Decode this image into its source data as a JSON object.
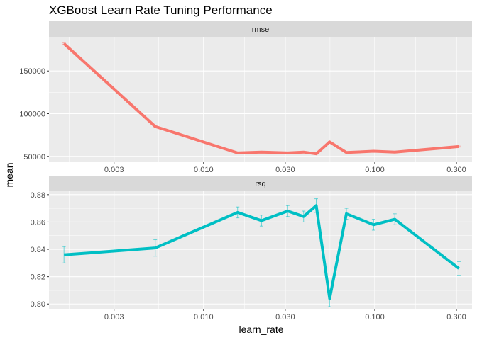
{
  "chart_data": {
    "type": "line",
    "title": "XGBoost Learn Rate Tuning Performance",
    "xlabel": "learn_rate",
    "ylabel": "mean",
    "x_scale": "log10",
    "xlim": [
      0.00125,
      0.37
    ],
    "x_ticks": [
      {
        "value": 0.003,
        "label": "0.003"
      },
      {
        "value": 0.01,
        "label": "0.010"
      },
      {
        "value": 0.03,
        "label": "0.030"
      },
      {
        "value": 0.1,
        "label": "0.100"
      },
      {
        "value": 0.3,
        "label": "0.300"
      }
    ],
    "grid": true,
    "legend": "none",
    "panels": [
      {
        "facet": "rmse",
        "color": "#F8766D",
        "ylim": [
          44000,
          190000
        ],
        "y_ticks": [
          {
            "value": 50000,
            "label": "50000"
          },
          {
            "value": 100000,
            "label": "100000"
          },
          {
            "value": 150000,
            "label": "150000"
          }
        ],
        "x": [
          0.00153,
          0.00522,
          0.0158,
          0.0218,
          0.031,
          0.0384,
          0.0455,
          0.0545,
          0.0683,
          0.0985,
          0.131,
          0.31
        ],
        "mean": [
          182000,
          85000,
          54000,
          55000,
          54000,
          55000,
          53000,
          67000,
          54500,
          56000,
          55000,
          61500
        ],
        "err": [
          800,
          500,
          500,
          500,
          500,
          500,
          500,
          600,
          500,
          500,
          500,
          600
        ]
      },
      {
        "facet": "rsq",
        "color": "#00BFC4",
        "ylim": [
          0.7965,
          0.8825
        ],
        "y_ticks": [
          {
            "value": 0.8,
            "label": "0.80"
          },
          {
            "value": 0.82,
            "label": "0.82"
          },
          {
            "value": 0.84,
            "label": "0.84"
          },
          {
            "value": 0.86,
            "label": "0.86"
          },
          {
            "value": 0.88,
            "label": "0.88"
          }
        ],
        "x": [
          0.00153,
          0.00522,
          0.0158,
          0.0218,
          0.031,
          0.0384,
          0.0455,
          0.0545,
          0.0683,
          0.0985,
          0.131,
          0.31
        ],
        "mean": [
          0.836,
          0.841,
          0.867,
          0.861,
          0.868,
          0.864,
          0.872,
          0.804,
          0.866,
          0.858,
          0.862,
          0.826
        ],
        "err": [
          0.006,
          0.006,
          0.004,
          0.004,
          0.004,
          0.004,
          0.005,
          0.006,
          0.004,
          0.004,
          0.004,
          0.005
        ]
      }
    ]
  }
}
